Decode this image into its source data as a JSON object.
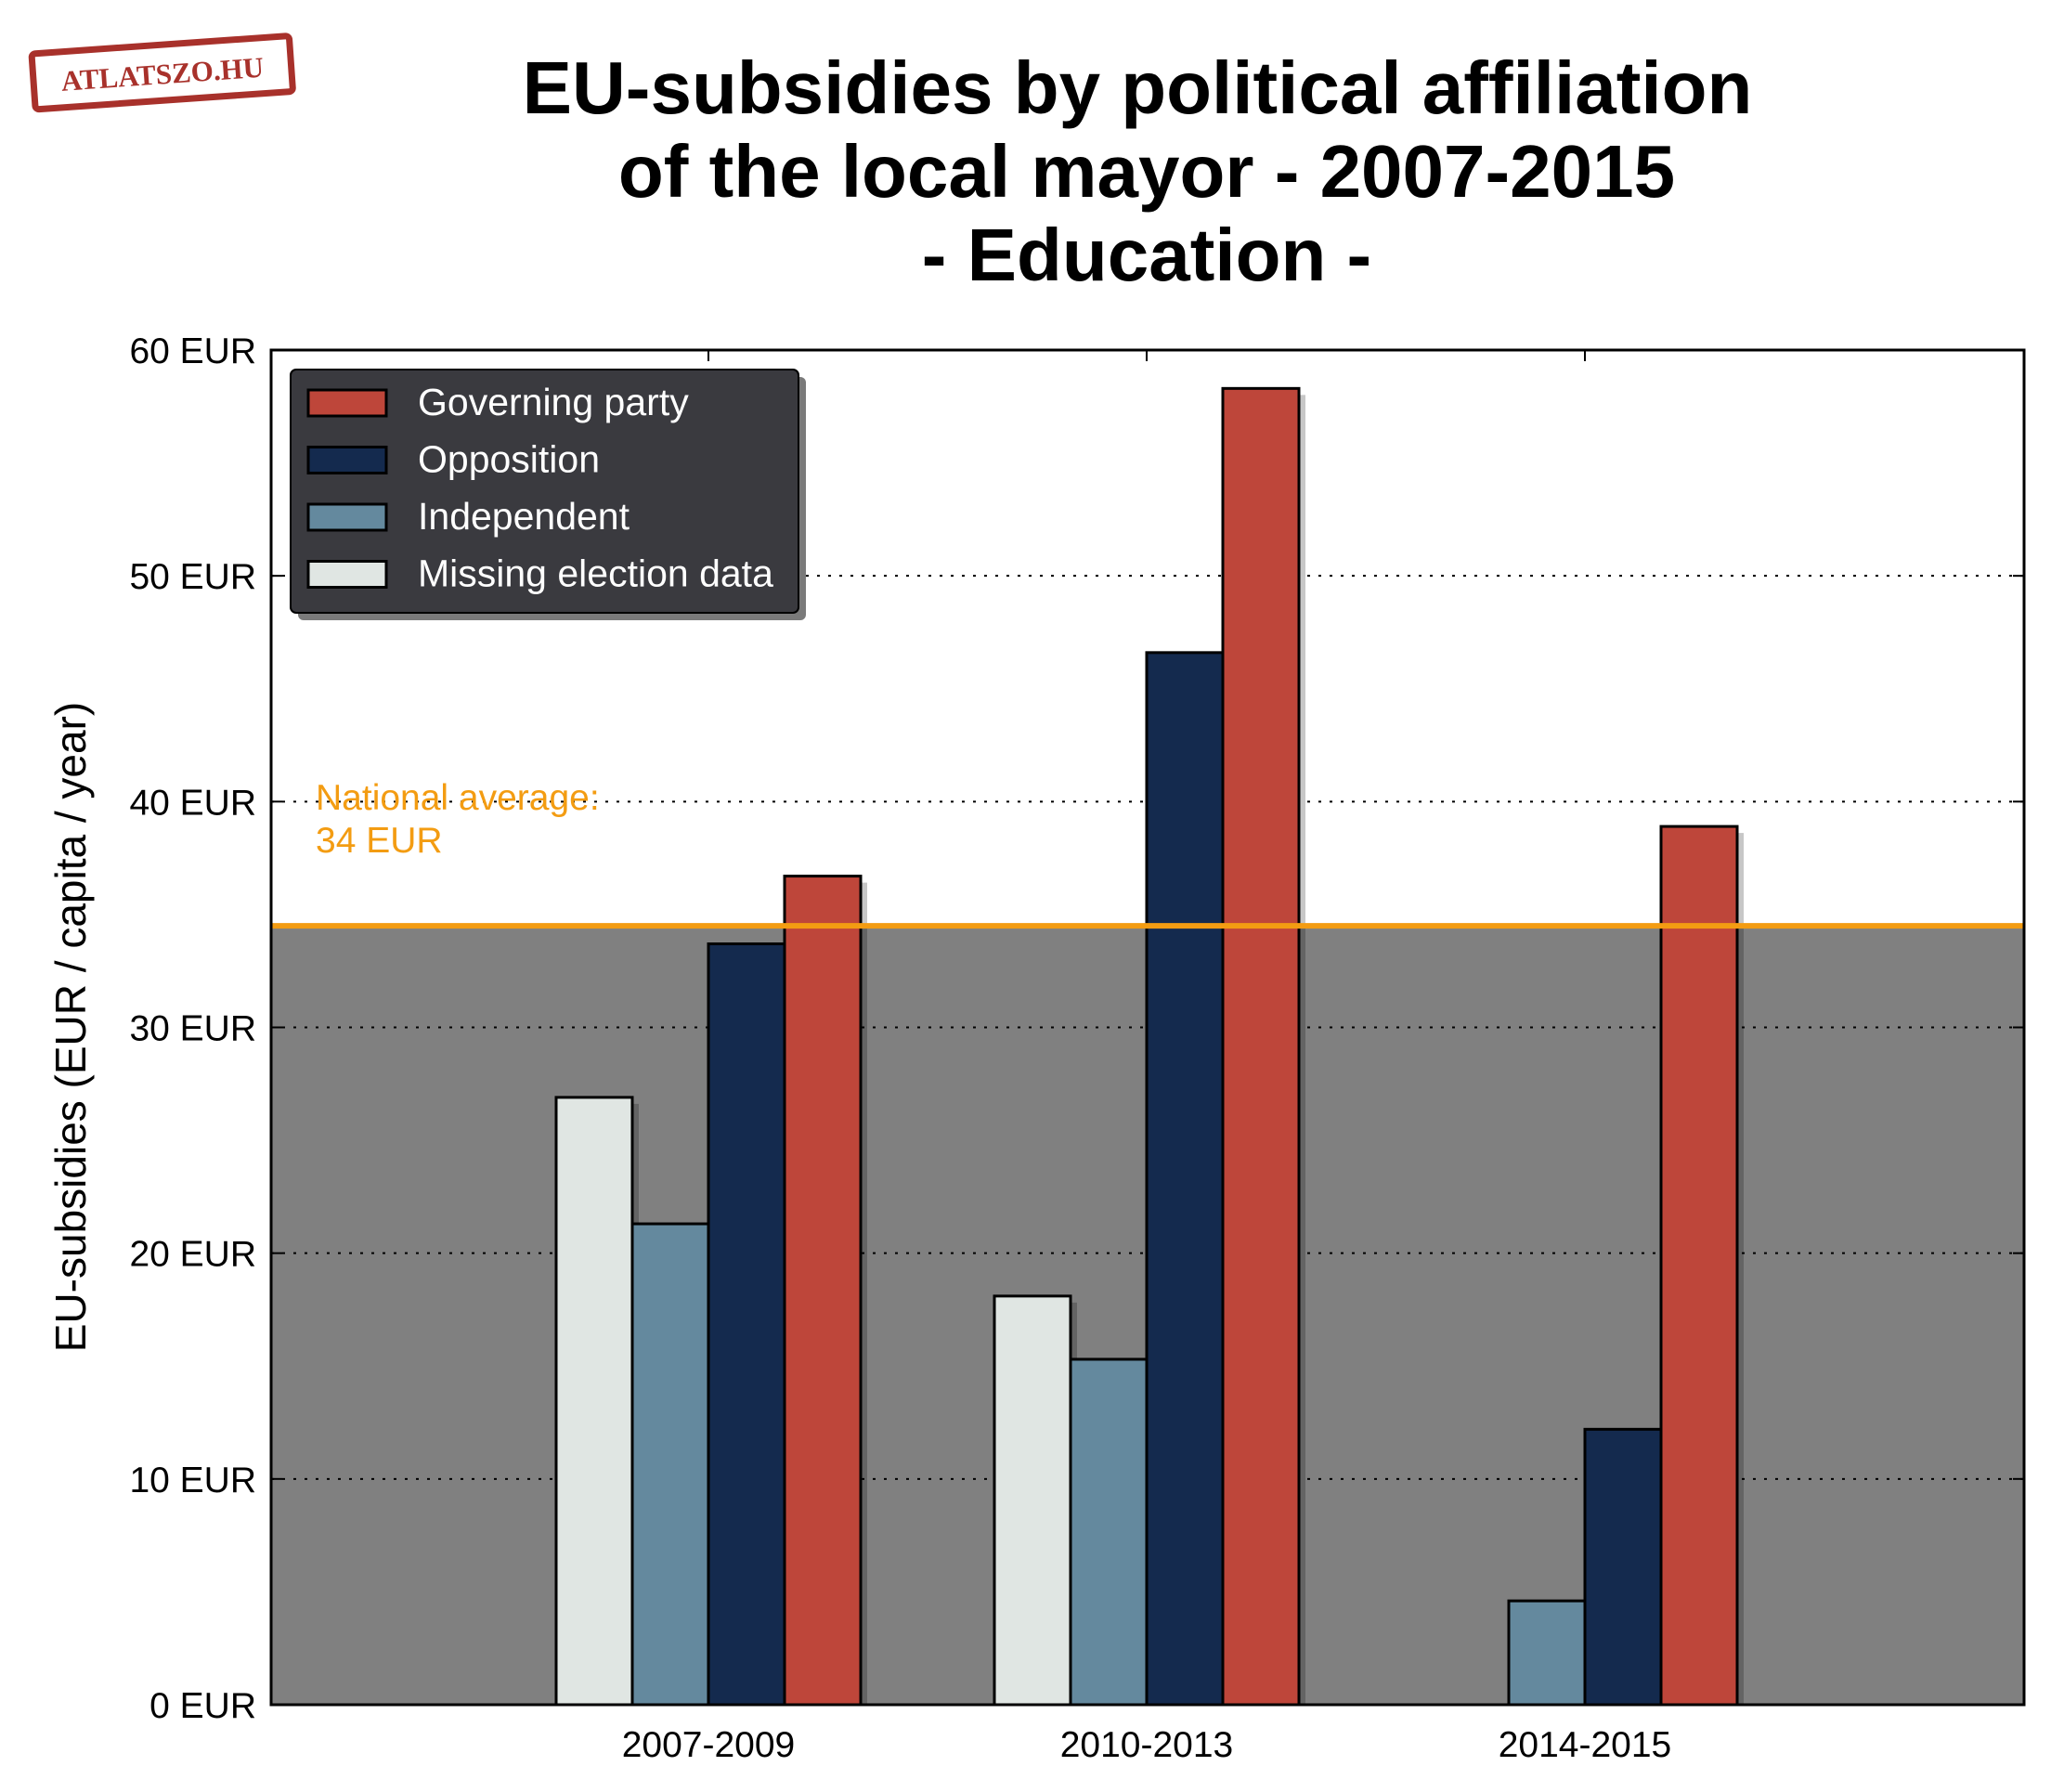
{
  "logo": {
    "text": "ATLATSZO.HU",
    "color": "#a8312b"
  },
  "title_lines": [
    "EU-subsidies by political affiliation",
    "of the local mayor - 2007-2015",
    "- Education -"
  ],
  "national_average": {
    "label_line1": "National average:",
    "label_line2": "34 EUR",
    "value": 34.5,
    "color": "#f39c12"
  },
  "chart_data": {
    "type": "bar",
    "title": "EU-subsidies by political affiliation of the local mayor - 2007-2015 - Education -",
    "ylabel": "EU-subsidies (EUR / capita / year)",
    "xlabel": "",
    "ylim": [
      0,
      60
    ],
    "yticks": [
      0,
      10,
      20,
      30,
      40,
      50,
      60
    ],
    "ytick_labels": [
      "0 EUR",
      "10 EUR",
      "20 EUR",
      "30 EUR",
      "40 EUR",
      "50 EUR",
      "60 EUR"
    ],
    "grid": "horizontal dotted",
    "legend_position": "top-left",
    "categories": [
      "2007-2009",
      "2010-2013",
      "2014-2015"
    ],
    "series": [
      {
        "name": "Missing election data",
        "color": "#e0e6e3",
        "values": [
          26.9,
          18.1,
          null
        ]
      },
      {
        "name": "Independent",
        "color": "#64899e",
        "values": [
          21.3,
          15.3,
          4.6
        ]
      },
      {
        "name": "Opposition",
        "color": "#142a4e",
        "values": [
          33.7,
          46.6,
          12.2
        ]
      },
      {
        "name": "Governing party",
        "color": "#be463a",
        "values": [
          36.7,
          58.3,
          38.9
        ]
      }
    ],
    "legend_order": [
      "Governing party",
      "Opposition",
      "Independent",
      "Missing election data"
    ],
    "below_average_fill": "#808080"
  }
}
